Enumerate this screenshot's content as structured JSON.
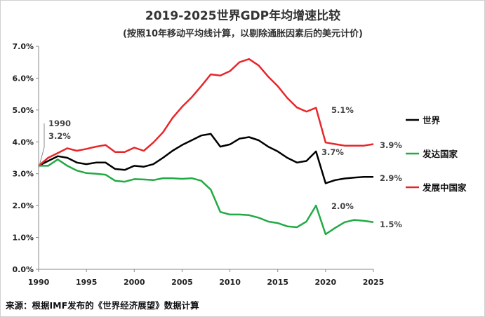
{
  "chart_data": {
    "type": "line",
    "title": "2019-2025世界GDP年均增速比较",
    "subtitle": "(按照10年移动平均线计算，以剔除通胀因素后的美元计价)",
    "source": "来源：根据IMF发布的《世界经济展望》数据计算",
    "xlim": [
      1990,
      2025
    ],
    "ylim": [
      0,
      7
    ],
    "x_ticks": [
      "1990",
      "1995",
      "2000",
      "2005",
      "2010",
      "2015",
      "2020",
      "2025"
    ],
    "y_ticks": [
      "0.0%",
      "1.0%",
      "2.0%",
      "3.0%",
      "4.0%",
      "5.0%",
      "6.0%",
      "7.0%"
    ],
    "x": [
      1990,
      1991,
      1992,
      1993,
      1994,
      1995,
      1996,
      1997,
      1998,
      1999,
      2000,
      2001,
      2002,
      2003,
      2004,
      2005,
      2006,
      2007,
      2008,
      2009,
      2010,
      2011,
      2012,
      2013,
      2014,
      2015,
      2016,
      2017,
      2018,
      2019,
      2020,
      2021,
      2022,
      2023,
      2024,
      2025
    ],
    "series": [
      {
        "name": "世界",
        "color": "#000000",
        "values": [
          3.25,
          3.4,
          3.55,
          3.5,
          3.35,
          3.3,
          3.35,
          3.35,
          3.15,
          3.12,
          3.25,
          3.22,
          3.3,
          3.5,
          3.72,
          3.9,
          4.05,
          4.2,
          4.25,
          3.85,
          3.92,
          4.1,
          4.15,
          4.05,
          3.85,
          3.7,
          3.5,
          3.35,
          3.4,
          3.7,
          2.7,
          2.8,
          2.85,
          2.88,
          2.9,
          2.9
        ]
      },
      {
        "name": "发达国家",
        "color": "#22aa44",
        "values": [
          3.25,
          3.25,
          3.45,
          3.25,
          3.1,
          3.02,
          3.0,
          2.97,
          2.78,
          2.75,
          2.83,
          2.82,
          2.8,
          2.86,
          2.86,
          2.84,
          2.86,
          2.78,
          2.5,
          1.8,
          1.72,
          1.72,
          1.7,
          1.62,
          1.5,
          1.45,
          1.35,
          1.32,
          1.5,
          2.0,
          1.1,
          1.3,
          1.48,
          1.55,
          1.52,
          1.48
        ]
      },
      {
        "name": "发展中国家",
        "color": "#e8262a",
        "values": [
          3.25,
          3.5,
          3.65,
          3.8,
          3.72,
          3.78,
          3.85,
          3.9,
          3.68,
          3.68,
          3.82,
          3.72,
          3.98,
          4.3,
          4.75,
          5.1,
          5.4,
          5.75,
          6.12,
          6.08,
          6.22,
          6.5,
          6.6,
          6.4,
          6.05,
          5.75,
          5.38,
          5.08,
          4.95,
          5.07,
          3.98,
          3.93,
          3.88,
          3.88,
          3.88,
          3.93
        ]
      }
    ],
    "annotations": [
      {
        "label": "1990",
        "x": 1990,
        "y": 3.25
      },
      {
        "label": "3.2%",
        "x": 1990,
        "y": 3.25
      },
      {
        "label": "5.1%",
        "x": 2019,
        "y": 5.07
      },
      {
        "label": "3.7%",
        "x": 2019,
        "y": 3.7
      },
      {
        "label": "2.0%",
        "x": 2019,
        "y": 2.0
      },
      {
        "label": "3.9%",
        "x": 2025,
        "y": 3.93
      },
      {
        "label": "2.9%",
        "x": 2025,
        "y": 2.9
      },
      {
        "label": "1.5%",
        "x": 2025,
        "y": 1.48
      }
    ],
    "legend": [
      {
        "name": "世界",
        "color": "#000000"
      },
      {
        "name": "发达国家",
        "color": "#22aa44"
      },
      {
        "name": "发展中国家",
        "color": "#e8262a"
      }
    ],
    "grid": false,
    "legend_position": "right"
  }
}
